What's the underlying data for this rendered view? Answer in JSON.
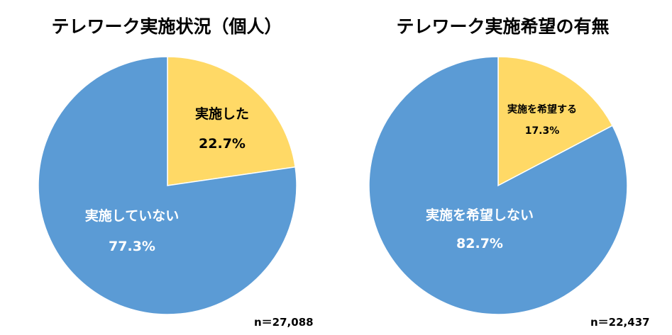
{
  "colors": {
    "yes": "#FFD966",
    "no": "#5B9BD5",
    "yes_text": "#000000",
    "no_text": "#FFFFFF"
  },
  "chart_data": [
    {
      "type": "pie",
      "title": "テレワーク実施状況（個人）",
      "slices": [
        {
          "label": "実施した",
          "value": 22.7,
          "display": "22.7%",
          "color": "#FFD966"
        },
        {
          "label": "実施していない",
          "value": 77.3,
          "display": "77.3%",
          "color": "#5B9BD5"
        }
      ],
      "n_label": "n＝27,088"
    },
    {
      "type": "pie",
      "title": "テレワーク実施希望の有無",
      "slices": [
        {
          "label": "実施を希望する",
          "value": 17.3,
          "display": "17.3%",
          "color": "#FFD966"
        },
        {
          "label": "実施を希望しない",
          "value": 82.7,
          "display": "82.7%",
          "color": "#5B9BD5"
        }
      ],
      "n_label": "n＝22,437"
    }
  ]
}
